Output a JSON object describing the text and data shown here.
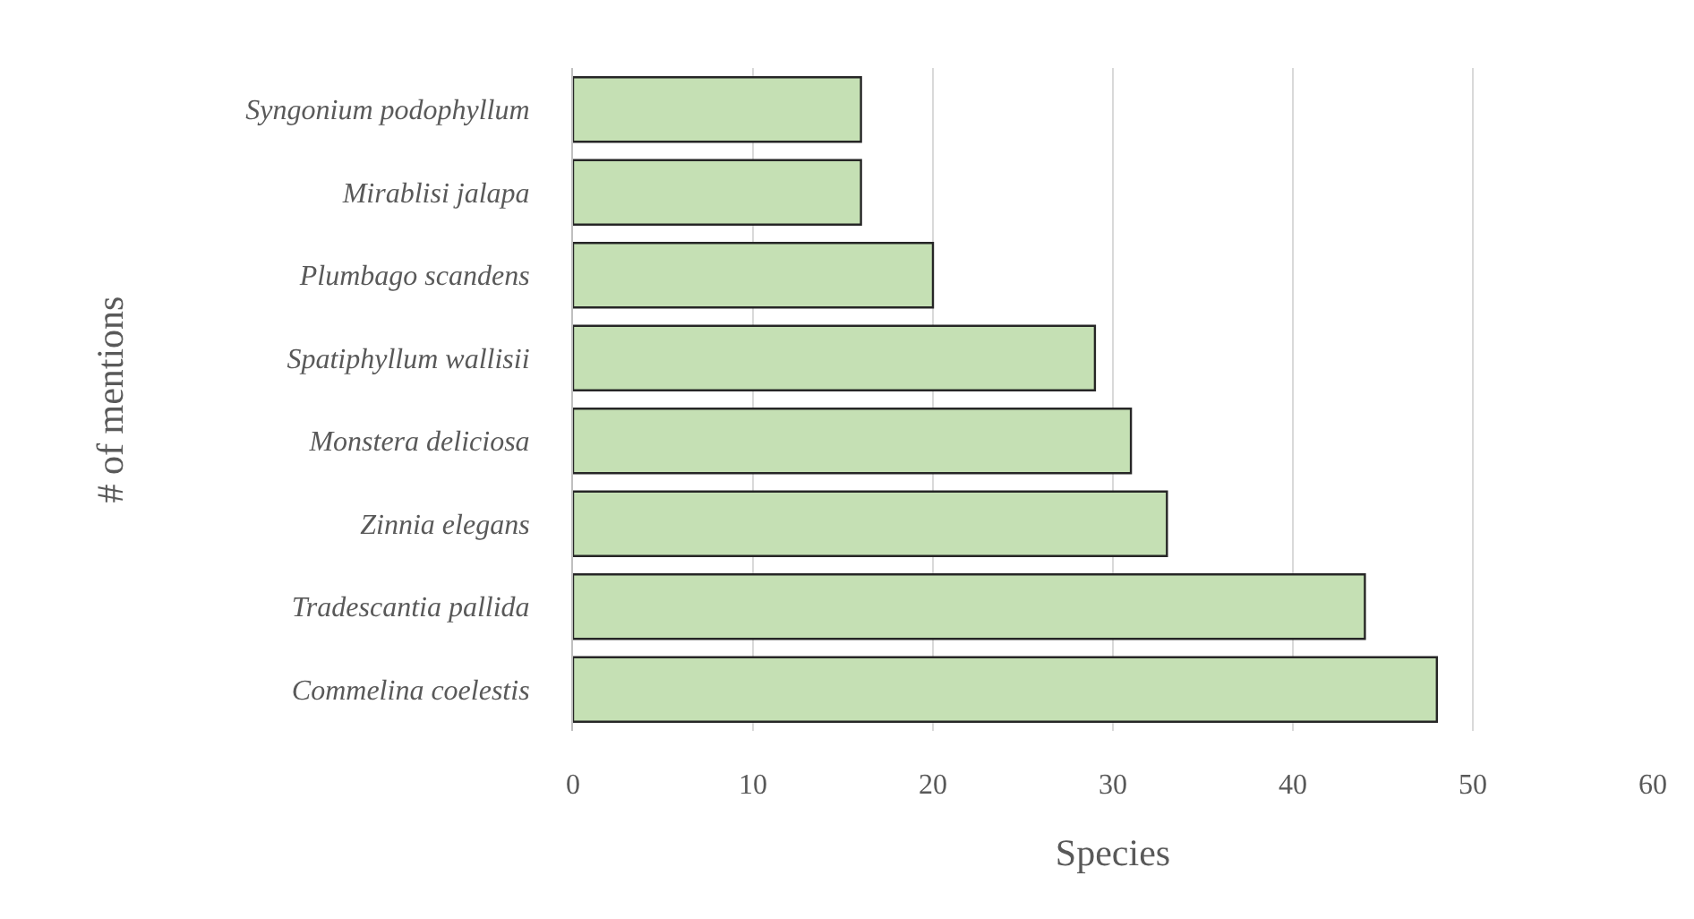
{
  "chart_data": {
    "type": "bar",
    "orientation": "horizontal",
    "xlabel": "Species",
    "ylabel": "# of mentions",
    "categories": [
      "Syngonium podophyllum",
      "Mirablisi jalapa",
      "Plumbago scandens",
      "Spatiphyllum wallisii",
      "Monstera deliciosa",
      "Zinnia elegans",
      "Tradescantia pallida",
      "Commelina coelestis"
    ],
    "values": [
      16,
      16,
      20,
      29,
      31,
      33,
      44,
      48
    ],
    "color": "#c5e0b4",
    "xlim": [
      0,
      60
    ],
    "xticks": [
      0,
      10,
      20,
      30,
      40,
      50,
      60
    ],
    "grid": "x"
  }
}
